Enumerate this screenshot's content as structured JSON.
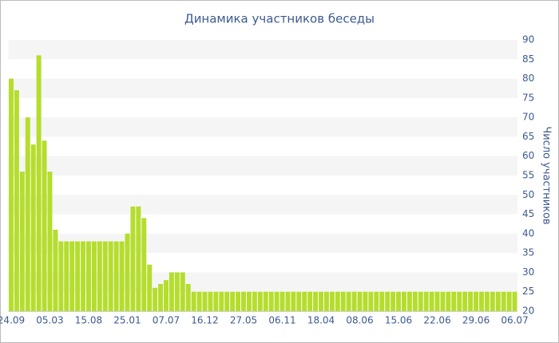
{
  "chart_data": {
    "type": "bar",
    "title": "Динамика участников беседы",
    "y_label": "Число участников",
    "categories": [
      "24.09",
      null,
      null,
      null,
      null,
      null,
      null,
      "05.03",
      null,
      null,
      null,
      null,
      null,
      null,
      "15.08",
      null,
      null,
      null,
      null,
      null,
      null,
      "25.01",
      null,
      null,
      null,
      null,
      null,
      null,
      "07.07",
      null,
      null,
      null,
      null,
      null,
      null,
      "16.12",
      null,
      null,
      null,
      null,
      null,
      null,
      "27.05",
      null,
      null,
      null,
      null,
      null,
      null,
      "06.11",
      null,
      null,
      null,
      null,
      null,
      null,
      "18.04",
      null,
      null,
      null,
      null,
      null,
      null,
      "08.06",
      null,
      null,
      null,
      null,
      null,
      null,
      "15.06",
      null,
      null,
      null,
      null,
      null,
      null,
      "22.06",
      null,
      null,
      null,
      null,
      null,
      null,
      "29.06",
      null,
      null,
      null,
      null,
      null,
      null,
      "06.07"
    ],
    "values": [
      80,
      77,
      56,
      70,
      63,
      86,
      64,
      56,
      41,
      38,
      38,
      38,
      38,
      38,
      38,
      38,
      38,
      38,
      38,
      38,
      38,
      40,
      47,
      47,
      44,
      32,
      26,
      27,
      28,
      30,
      30,
      30,
      27,
      25,
      25,
      25,
      25,
      25,
      25,
      25,
      25,
      25,
      25,
      25,
      25,
      25,
      25,
      25,
      25,
      25,
      25,
      25,
      25,
      25,
      25,
      25,
      25,
      25,
      25,
      25,
      25,
      25,
      25,
      25,
      25,
      25,
      25,
      25,
      25,
      25,
      25,
      25,
      25,
      25,
      25,
      25,
      25,
      25,
      25,
      25,
      25,
      25,
      25,
      25,
      25,
      25,
      25,
      25,
      25,
      25,
      25,
      25
    ],
    "color": "#b5dd2e",
    "ylim": [
      20,
      90
    ],
    "yticks": [
      20,
      25,
      30,
      35,
      40,
      45,
      50,
      55,
      60,
      65,
      70,
      75,
      80,
      85,
      90
    ],
    "grid": true
  }
}
